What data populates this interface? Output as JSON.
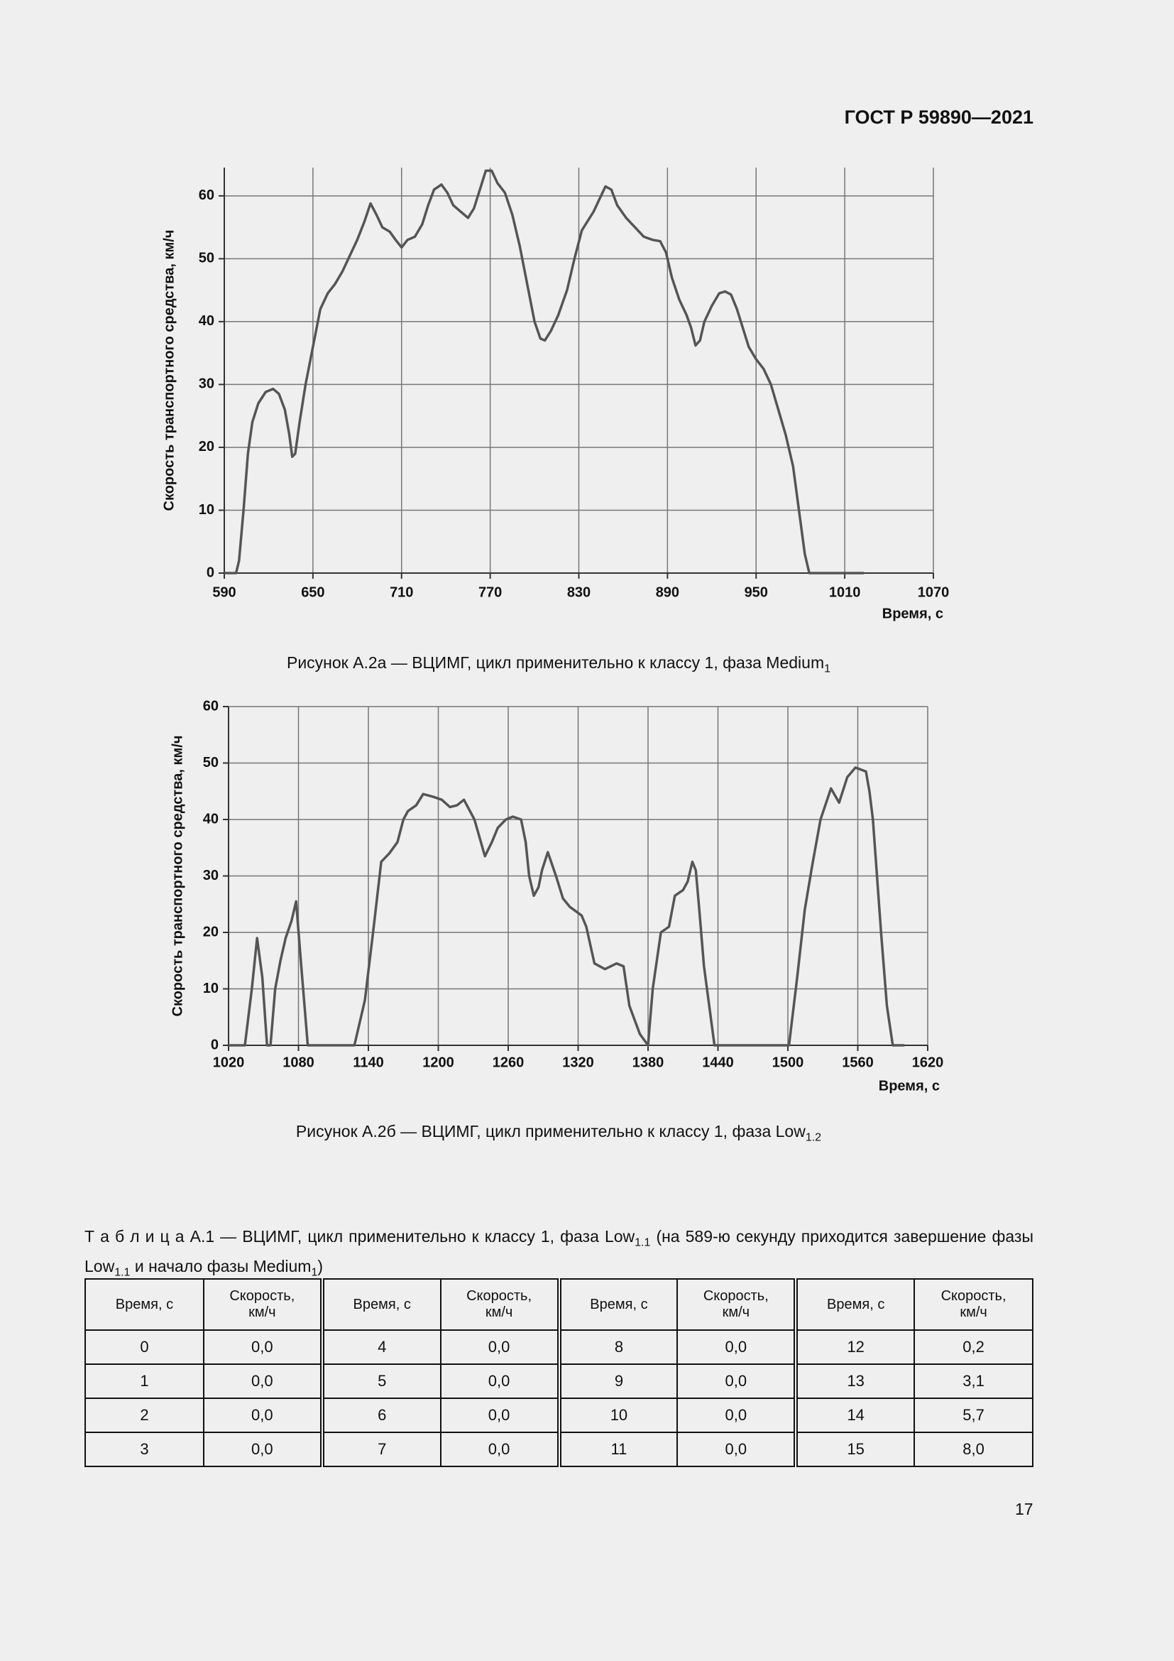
{
  "header": {
    "title": "ГОСТ Р 59890—2021"
  },
  "chart_data": [
    {
      "type": "line",
      "color": "#555555",
      "grid": true,
      "ylabel": "Скорость транспортного средства, км/ч",
      "xlabel": "Время, с",
      "xlim": [
        590,
        1070
      ],
      "ylim": [
        0,
        64.5
      ],
      "xticks": [
        590,
        650,
        710,
        770,
        830,
        890,
        950,
        1010,
        1070
      ],
      "yticks": [
        0,
        10,
        20,
        30,
        40,
        50,
        60
      ],
      "x": [
        590,
        598,
        600,
        603,
        606,
        609,
        613,
        618,
        623,
        627,
        631,
        634,
        636,
        638,
        641,
        645,
        650,
        655,
        660,
        665,
        670,
        675,
        680,
        685,
        689,
        693,
        697,
        702,
        706,
        710,
        714,
        719,
        724,
        728,
        732,
        737,
        741,
        745,
        750,
        755,
        759,
        763,
        767,
        771,
        775,
        780,
        785,
        790,
        795,
        800,
        804,
        807,
        811,
        816,
        822,
        827,
        832,
        836,
        840,
        844,
        848,
        852,
        856,
        862,
        868,
        874,
        880,
        885,
        889,
        893,
        898,
        903,
        906,
        909,
        912,
        915,
        920,
        925,
        929,
        933,
        937,
        941,
        945,
        950,
        955,
        960,
        965,
        970,
        975,
        979,
        983,
        986,
        995,
        1005,
        1015,
        1023
      ],
      "values": [
        0,
        0,
        2,
        10,
        19,
        24,
        27,
        28.8,
        29.3,
        28.5,
        26,
        22,
        18.5,
        19,
        24,
        30,
        36,
        42,
        44.5,
        46,
        48,
        50.5,
        53,
        56,
        58.8,
        57,
        55,
        54.3,
        53,
        51.8,
        53,
        53.5,
        55.5,
        58.5,
        61,
        61.8,
        60.5,
        58.5,
        57.5,
        56.5,
        58,
        61,
        64,
        64,
        62,
        60.5,
        57,
        52,
        46,
        40,
        37.3,
        37,
        38.5,
        41,
        45,
        50,
        54.5,
        56,
        57.5,
        59.5,
        61.5,
        61,
        58.5,
        56.5,
        55,
        53.5,
        53,
        52.8,
        51,
        47,
        43.5,
        41,
        39,
        36.2,
        37,
        40,
        42.5,
        44.5,
        44.8,
        44.3,
        42,
        39,
        36,
        34,
        32.5,
        30,
        26,
        22,
        17,
        10,
        3,
        0,
        0,
        0,
        0,
        0
      ]
    },
    {
      "type": "line",
      "color": "#555555",
      "grid": true,
      "ylabel": "Скорость транспортного средства, км/ч",
      "xlabel": "Время, с",
      "xlim": [
        1020,
        1620
      ],
      "ylim": [
        0,
        60
      ],
      "xticks": [
        1020,
        1080,
        1140,
        1200,
        1260,
        1320,
        1380,
        1440,
        1500,
        1560,
        1620
      ],
      "yticks": [
        0,
        10,
        20,
        30,
        40,
        50,
        60
      ],
      "x": [
        1020,
        1030,
        1034,
        1040,
        1044.5,
        1049,
        1053,
        1056,
        1060,
        1064.5,
        1069,
        1074,
        1078,
        1082,
        1088,
        1100,
        1115,
        1128,
        1137,
        1144,
        1151,
        1158,
        1165,
        1170,
        1174,
        1181,
        1187,
        1196,
        1203,
        1210,
        1216,
        1222,
        1231,
        1240,
        1246,
        1251,
        1258,
        1264,
        1271,
        1275,
        1278,
        1282,
        1286,
        1289,
        1294,
        1301,
        1307,
        1313,
        1323,
        1327,
        1334,
        1343,
        1353,
        1359,
        1364,
        1373,
        1380,
        1384,
        1391,
        1398,
        1403,
        1410,
        1414,
        1418,
        1421,
        1424,
        1428,
        1437,
        1450,
        1470,
        1490,
        1501,
        1508,
        1514.5,
        1521,
        1528,
        1537,
        1544,
        1551,
        1558,
        1567,
        1570,
        1573,
        1580,
        1585,
        1590,
        1600
      ],
      "values": [
        0,
        0,
        0,
        10,
        19,
        12,
        0,
        0,
        10,
        15,
        19,
        22,
        25.5,
        15,
        0,
        0,
        0,
        0,
        8,
        20,
        32.5,
        34,
        36,
        40,
        41.5,
        42.5,
        44.5,
        44,
        43.5,
        42.2,
        42.5,
        43.5,
        40,
        33.5,
        36,
        38.5,
        40,
        40.5,
        40,
        36,
        30,
        26.5,
        28,
        31,
        34.2,
        30,
        26,
        24.5,
        23,
        21,
        14.5,
        13.5,
        14.5,
        14,
        7,
        2,
        0,
        10,
        20,
        21,
        26.5,
        27.5,
        29,
        32.5,
        31,
        24,
        14,
        0,
        0,
        0,
        0,
        0,
        12,
        24,
        32,
        40,
        45.5,
        43,
        47.5,
        49.2,
        48.5,
        45,
        40,
        20,
        7,
        0,
        0
      ]
    }
  ],
  "captions": [
    {
      "text": "Рисунок А.2а — ВЦИМГ, цикл применительно к классу 1, фаза Medium",
      "sub": "1"
    },
    {
      "text": "Рисунок А.2б — ВЦИМГ, цикл применительно к классу 1, фаза Low",
      "sub": "1.2"
    }
  ],
  "table": {
    "caption": [
      {
        "text": "Т а б л и ц а  А.1 — ВЦИМГ, цикл применительно к классу 1, фаза Low"
      },
      {
        "sub": "1.1"
      },
      {
        "text": " (на 589-ю секунду приходится завершение фазы Low"
      },
      {
        "sub": "1.1"
      },
      {
        "text": " и начало фазы Medium"
      },
      {
        "sub": "1"
      },
      {
        "text": ")"
      }
    ],
    "header": [
      "Время, с",
      "Скорость, км/ч",
      "Время, с",
      "Скорость, км/ч",
      "Время, с",
      "Скорость, км/ч",
      "Время, с",
      "Скорость, км/ч"
    ],
    "rows": [
      [
        "0",
        "0,0",
        "4",
        "0,0",
        "8",
        "0,0",
        "12",
        "0,2"
      ],
      [
        "1",
        "0,0",
        "5",
        "0,0",
        "9",
        "0,0",
        "13",
        "3,1"
      ],
      [
        "2",
        "0,0",
        "6",
        "0,0",
        "10",
        "0,0",
        "14",
        "5,7"
      ],
      [
        "3",
        "0,0",
        "7",
        "0,0",
        "11",
        "0,0",
        "15",
        "8,0"
      ]
    ]
  },
  "page_number": "17"
}
